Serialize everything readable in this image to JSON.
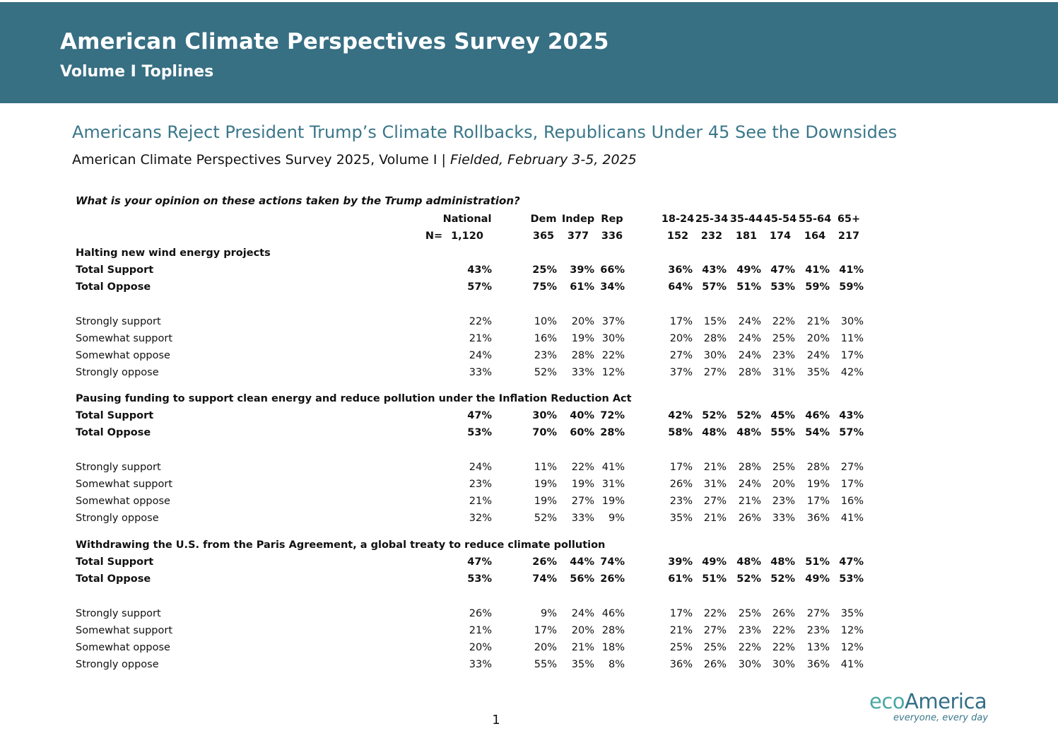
{
  "header": {
    "title": "American Climate Perspectives Survey 2025",
    "subtitle": "Volume I Toplines",
    "band_color": "#376f83"
  },
  "document": {
    "heading": "Americans Reject President Trump’s Climate Rollbacks, Republicans Under 45 See the Downsides",
    "subheading_plain": "American Climate Perspectives Survey 2025, Volume I | ",
    "subheading_italic": "Fielded, February 3-5, 2025",
    "heading_color": "#3a7789"
  },
  "table": {
    "question": "What is your opinion on these actions taken by the Trump administration?",
    "columns": [
      "National",
      "Dem",
      "Indep",
      "Rep",
      "18-24",
      "25-34",
      "35-44",
      "45-54",
      "55-64",
      "65+"
    ],
    "n_label": "N=",
    "n_values": [
      "1,120",
      "365",
      "377",
      "336",
      "152",
      "232",
      "181",
      "174",
      "164",
      "217"
    ],
    "sections": [
      {
        "title": "Halting new wind energy projects",
        "rows": [
          {
            "label": "Total Support",
            "bold": true,
            "values": [
              "43%",
              "25%",
              "39%",
              "66%",
              "36%",
              "43%",
              "49%",
              "47%",
              "41%",
              "41%"
            ]
          },
          {
            "label": "Total Oppose",
            "bold": true,
            "values": [
              "57%",
              "75%",
              "61%",
              "34%",
              "64%",
              "57%",
              "51%",
              "53%",
              "59%",
              "59%"
            ]
          },
          {
            "label": "Strongly support",
            "bold": false,
            "values": [
              "22%",
              "10%",
              "20%",
              "37%",
              "17%",
              "15%",
              "24%",
              "22%",
              "21%",
              "30%"
            ]
          },
          {
            "label": "Somewhat support",
            "bold": false,
            "values": [
              "21%",
              "16%",
              "19%",
              "30%",
              "20%",
              "28%",
              "24%",
              "25%",
              "20%",
              "11%"
            ]
          },
          {
            "label": "Somewhat oppose",
            "bold": false,
            "values": [
              "24%",
              "23%",
              "28%",
              "22%",
              "27%",
              "30%",
              "24%",
              "23%",
              "24%",
              "17%"
            ]
          },
          {
            "label": "Strongly oppose",
            "bold": false,
            "values": [
              "33%",
              "52%",
              "33%",
              "12%",
              "37%",
              "27%",
              "28%",
              "31%",
              "35%",
              "42%"
            ]
          }
        ]
      },
      {
        "title": "Pausing funding to support clean energy and reduce pollution under the Inflation Reduction Act",
        "rows": [
          {
            "label": "Total Support",
            "bold": true,
            "values": [
              "47%",
              "30%",
              "40%",
              "72%",
              "42%",
              "52%",
              "52%",
              "45%",
              "46%",
              "43%"
            ]
          },
          {
            "label": "Total Oppose",
            "bold": true,
            "values": [
              "53%",
              "70%",
              "60%",
              "28%",
              "58%",
              "48%",
              "48%",
              "55%",
              "54%",
              "57%"
            ]
          },
          {
            "label": "Strongly support",
            "bold": false,
            "values": [
              "24%",
              "11%",
              "22%",
              "41%",
              "17%",
              "21%",
              "28%",
              "25%",
              "28%",
              "27%"
            ]
          },
          {
            "label": "Somewhat support",
            "bold": false,
            "values": [
              "23%",
              "19%",
              "19%",
              "31%",
              "26%",
              "31%",
              "24%",
              "20%",
              "19%",
              "17%"
            ]
          },
          {
            "label": "Somewhat oppose",
            "bold": false,
            "values": [
              "21%",
              "19%",
              "27%",
              "19%",
              "23%",
              "27%",
              "21%",
              "23%",
              "17%",
              "16%"
            ]
          },
          {
            "label": "Strongly oppose",
            "bold": false,
            "values": [
              "32%",
              "52%",
              "33%",
              "9%",
              "35%",
              "21%",
              "26%",
              "33%",
              "36%",
              "41%"
            ]
          }
        ]
      },
      {
        "title": "Withdrawing the U.S. from the Paris Agreement, a global treaty to reduce climate pollution",
        "rows": [
          {
            "label": "Total Support",
            "bold": true,
            "values": [
              "47%",
              "26%",
              "44%",
              "74%",
              "39%",
              "49%",
              "48%",
              "48%",
              "51%",
              "47%"
            ]
          },
          {
            "label": "Total Oppose",
            "bold": true,
            "values": [
              "53%",
              "74%",
              "56%",
              "26%",
              "61%",
              "51%",
              "52%",
              "52%",
              "49%",
              "53%"
            ]
          },
          {
            "label": "Strongly support",
            "bold": false,
            "values": [
              "26%",
              "9%",
              "24%",
              "46%",
              "17%",
              "22%",
              "25%",
              "26%",
              "27%",
              "35%"
            ]
          },
          {
            "label": "Somewhat support",
            "bold": false,
            "values": [
              "21%",
              "17%",
              "20%",
              "28%",
              "21%",
              "27%",
              "23%",
              "22%",
              "23%",
              "12%"
            ]
          },
          {
            "label": "Somewhat oppose",
            "bold": false,
            "values": [
              "20%",
              "20%",
              "21%",
              "18%",
              "25%",
              "25%",
              "22%",
              "22%",
              "13%",
              "12%"
            ]
          },
          {
            "label": "Strongly oppose",
            "bold": false,
            "values": [
              "33%",
              "55%",
              "35%",
              "8%",
              "36%",
              "26%",
              "30%",
              "30%",
              "36%",
              "41%"
            ]
          }
        ]
      }
    ]
  },
  "footer": {
    "page_number": "1",
    "logo_eco": "eco",
    "logo_america": "America",
    "logo_tagline": "everyone, every day"
  }
}
